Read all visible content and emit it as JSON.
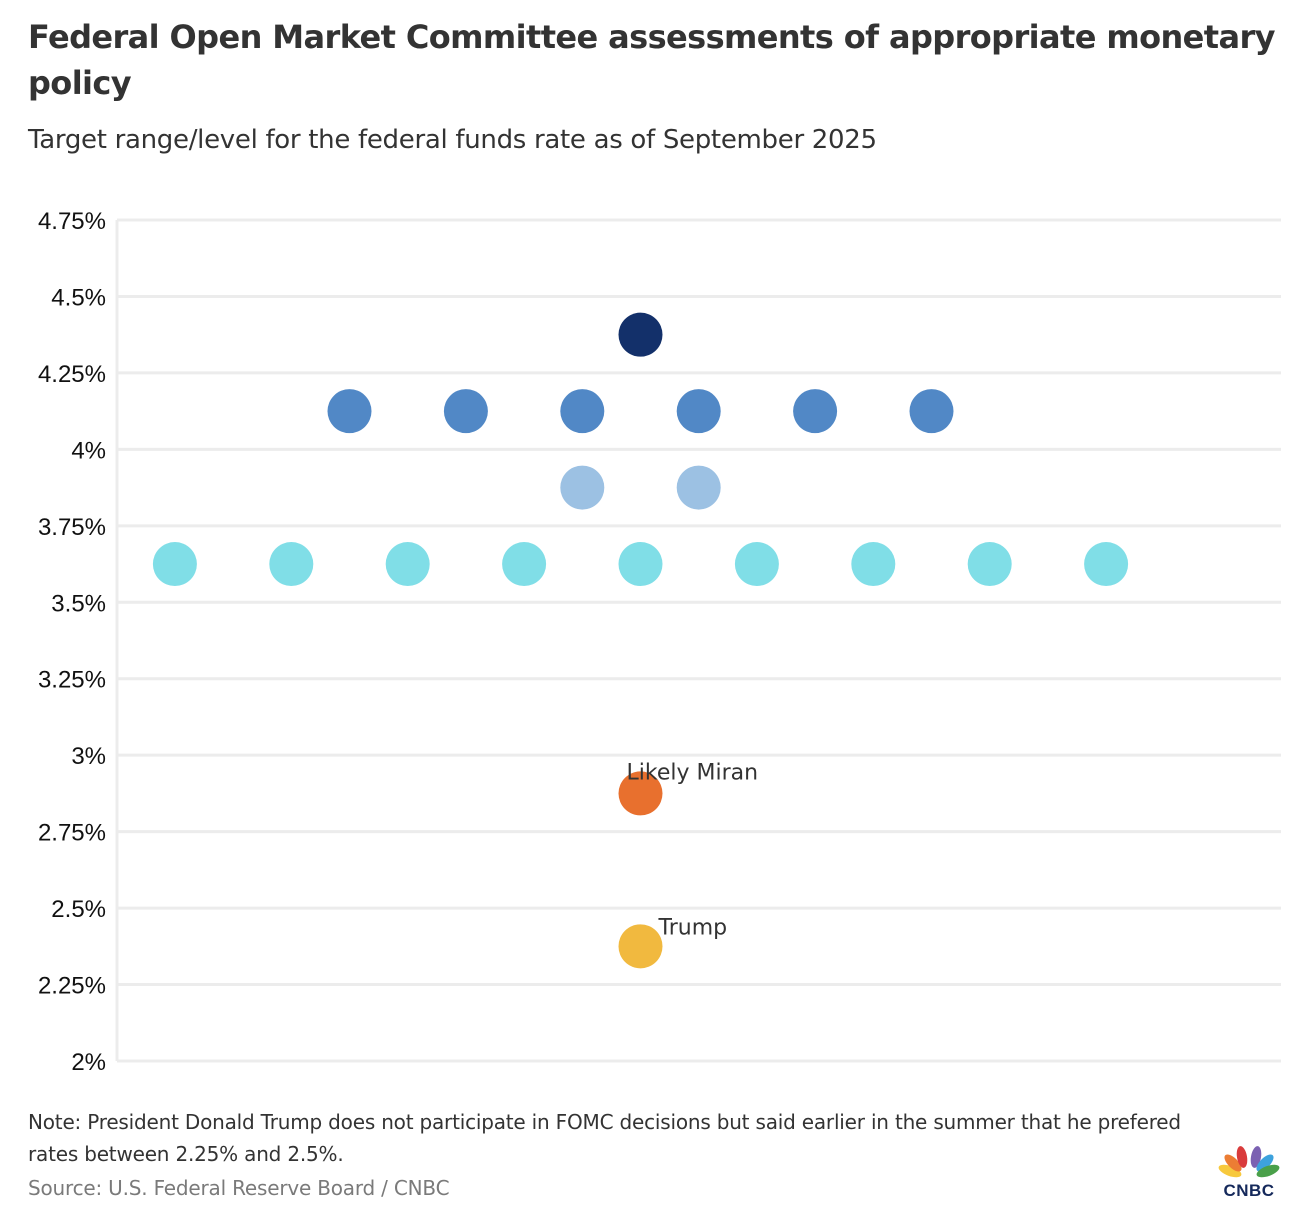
{
  "header": {
    "title": "Federal Open Market Committee assessments of appropriate monetary policy",
    "subtitle": "Target range/level for the federal funds rate as of September 2025"
  },
  "footer": {
    "note": "Note: President Donald Trump does not participate in FOMC decisions but said earlier in the summer that he prefered rates between 2.25% and 2.5%.",
    "source": "Source: U.S. Federal Reserve Board / CNBC",
    "logo_text": "CNBC"
  },
  "chart_data": {
    "type": "scatter",
    "title": "Federal Open Market Committee assessments of appropriate monetary policy",
    "subtitle": "Target range/level for the federal funds rate as of September 2025",
    "xlabel": "",
    "ylabel": "",
    "ylim": [
      2.0,
      4.75
    ],
    "yticks": [
      4.75,
      4.5,
      4.25,
      4.0,
      3.75,
      3.5,
      3.25,
      3.0,
      2.75,
      2.5,
      2.25,
      2.0
    ],
    "ytick_labels": [
      "4.75%",
      "4.5%",
      "4.25%",
      "4%",
      "3.75%",
      "3.5%",
      "3.25%",
      "3%",
      "2.75%",
      "2.5%",
      "2.25%",
      "2%"
    ],
    "grid": true,
    "series": [
      {
        "name": "4.375% projection",
        "color": "#13306a",
        "rate": 4.375,
        "count": 1
      },
      {
        "name": "4.125% projections",
        "color": "#5188c6",
        "rate": 4.125,
        "count": 6
      },
      {
        "name": "3.875% projections",
        "color": "#9cc1e3",
        "rate": 3.875,
        "count": 2
      },
      {
        "name": "3.625% projections",
        "color": "#80dee7",
        "rate": 3.625,
        "count": 9
      },
      {
        "name": "Likely Miran",
        "color": "#e8702e",
        "rate": 2.875,
        "count": 1,
        "label": "Likely Miran"
      },
      {
        "name": "Trump",
        "color": "#f1b93f",
        "rate": 2.375,
        "count": 1,
        "label": "Trump"
      }
    ]
  }
}
